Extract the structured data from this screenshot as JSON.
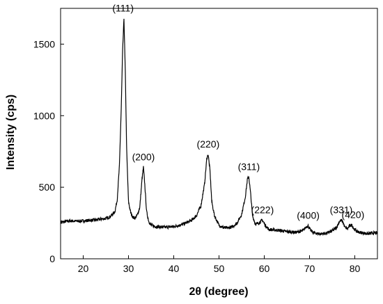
{
  "chart_data": {
    "type": "line",
    "xlabel": "2θ (degree)",
    "ylabel": "Intensity (cps)",
    "xlim": [
      15,
      85
    ],
    "ylim": [
      0,
      1750
    ],
    "xticks": [
      20,
      30,
      40,
      50,
      60,
      70,
      80
    ],
    "yticks": [
      0,
      500,
      1000,
      1500
    ],
    "grid": false,
    "series": [
      {
        "color": "#000000",
        "x": [
          15,
          17,
          19,
          21,
          23,
          25,
          26,
          27,
          27.5,
          28,
          28.4,
          28.7,
          29,
          29.3,
          29.6,
          30,
          30.5,
          31,
          31.5,
          32,
          32.5,
          33,
          33.3,
          33.6,
          34,
          34.5,
          35,
          36,
          38,
          40,
          42,
          44,
          45,
          46,
          46.8,
          47.3,
          47.6,
          48,
          48.4,
          49,
          50,
          51,
          52,
          53,
          54,
          55,
          55.8,
          56.3,
          56.6,
          57,
          57.4,
          58,
          58.5,
          59,
          59.6,
          60.2,
          61,
          63,
          65,
          67,
          68.5,
          69.3,
          69.7,
          70.2,
          71,
          72,
          73,
          74,
          75,
          76,
          76.6,
          77,
          77.4,
          77.8,
          78.4,
          79,
          79.4,
          79.8,
          80.5,
          81,
          82,
          83,
          84,
          85
        ],
        "y": [
          255,
          265,
          262,
          268,
          272,
          282,
          295,
          330,
          410,
          650,
          1050,
          1450,
          1680,
          1300,
          760,
          400,
          320,
          290,
          285,
          310,
          360,
          560,
          640,
          520,
          330,
          260,
          235,
          225,
          220,
          225,
          240,
          270,
          300,
          370,
          520,
          700,
          730,
          620,
          400,
          300,
          235,
          218,
          215,
          225,
          250,
          310,
          430,
          560,
          570,
          450,
          300,
          245,
          245,
          255,
          270,
          235,
          205,
          200,
          190,
          185,
          195,
          225,
          230,
          200,
          180,
          175,
          175,
          180,
          195,
          220,
          260,
          270,
          255,
          220,
          210,
          235,
          235,
          210,
          190,
          185,
          180,
          175,
          180,
          180
        ]
      }
    ],
    "annotations": [
      {
        "text": "(111)",
        "x": 28.8,
        "y": 1680
      },
      {
        "text": "(200)",
        "x": 33.3,
        "y": 640
      },
      {
        "text": "(220)",
        "x": 47.6,
        "y": 730
      },
      {
        "text": "(311)",
        "x": 56.6,
        "y": 570
      },
      {
        "text": "(222)",
        "x": 59.6,
        "y": 270
      },
      {
        "text": "(400)",
        "x": 69.7,
        "y": 230
      },
      {
        "text": "(331)",
        "x": 77.0,
        "y": 270
      },
      {
        "text": "(420)",
        "x": 79.6,
        "y": 235
      }
    ]
  }
}
